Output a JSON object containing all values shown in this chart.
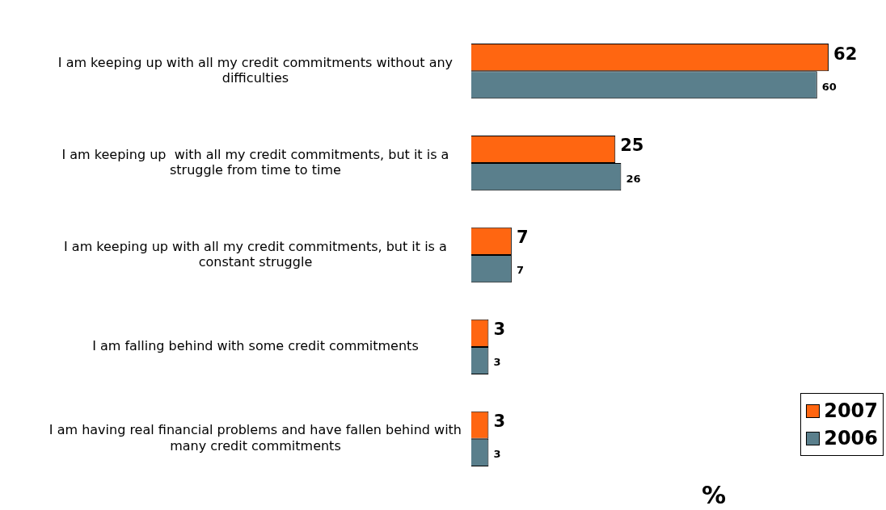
{
  "chart_data": {
    "type": "bar",
    "orientation": "horizontal",
    "categories": [
      "I am keeping up with all my credit commitments without any difficulties",
      "I am keeping up  with all my credit commitments, but it is a struggle from time to time",
      "I am keeping up with all my credit commitments, but it is a constant struggle",
      "I am falling behind with some credit commitments",
      "I am having real financial problems and have fallen behind with many credit commitments"
    ],
    "series": [
      {
        "name": "2007",
        "color": "#ff6611",
        "values": [
          62,
          25,
          7,
          3,
          3
        ]
      },
      {
        "name": "2006",
        "color": "#5a7f8c",
        "values": [
          60,
          26,
          7,
          3,
          3
        ]
      }
    ],
    "data_labels": true,
    "grid": false,
    "legend": "bottom right",
    "annotations": [
      "%"
    ]
  }
}
